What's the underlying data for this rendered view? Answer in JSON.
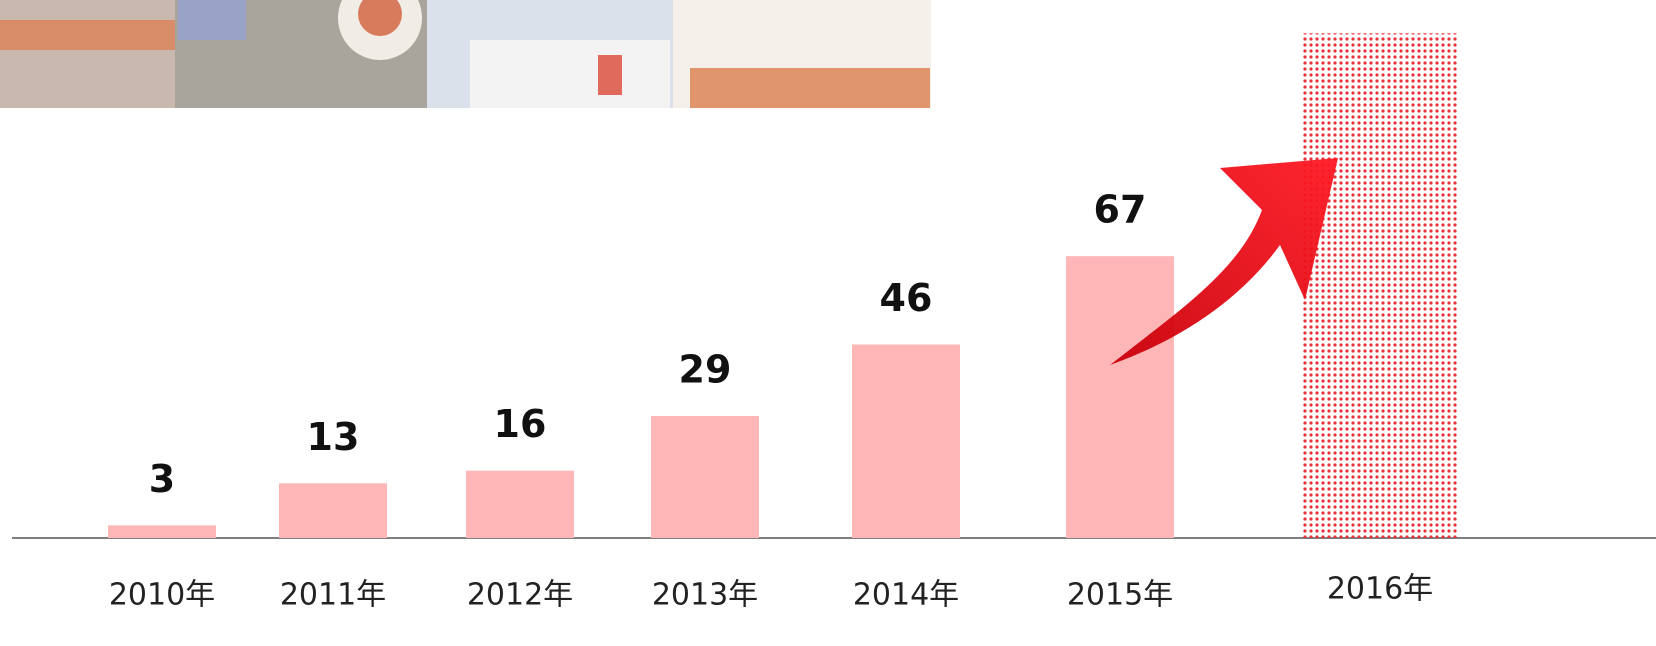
{
  "chart_data": {
    "type": "bar",
    "categories": [
      "2010年",
      "2011年",
      "2012年",
      "2013年",
      "2014年",
      "2015年",
      "2016年"
    ],
    "values": [
      3,
      13,
      16,
      29,
      46,
      67,
      120
    ],
    "value_labels": [
      "3",
      "13",
      "16",
      "29",
      "46",
      "67",
      null
    ],
    "color": "#ffb6b6",
    "ylim": [
      0,
      126
    ]
  }
}
